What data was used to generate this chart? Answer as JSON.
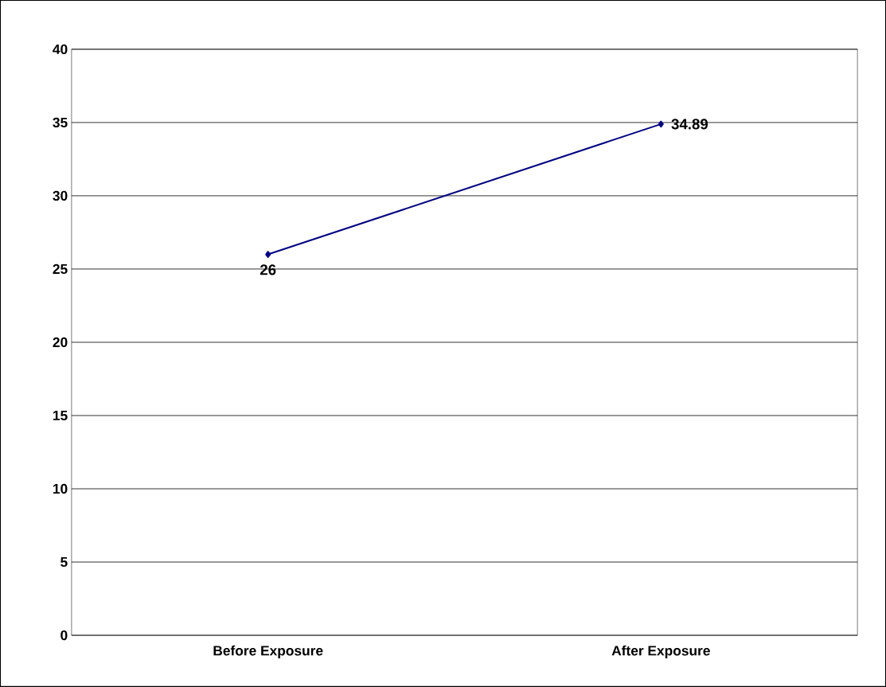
{
  "chart_data": {
    "type": "line",
    "categories": [
      "Before Exposure",
      "After Exposure"
    ],
    "series": [
      {
        "color": "#000080",
        "values": [
          26,
          34.89
        ]
      }
    ],
    "ylim": [
      0,
      40
    ],
    "yticks": [
      0,
      5,
      10,
      15,
      20,
      25,
      30,
      35,
      40
    ],
    "grid": "y",
    "marker": "diamond",
    "line_style": "solid",
    "data_labels": true
  }
}
